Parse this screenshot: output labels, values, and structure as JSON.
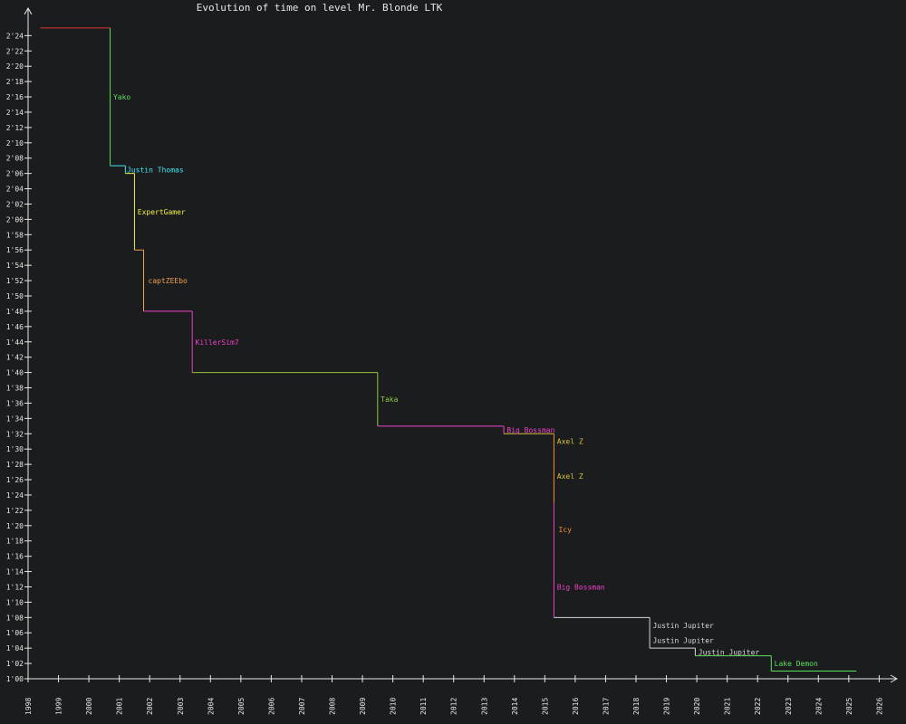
{
  "chart_data": {
    "type": "line",
    "title": "Evolution of time on level Mr. Blonde LTK",
    "xlabel": "",
    "ylabel": "",
    "xlim": [
      1998,
      2026
    ],
    "ylim_seconds": [
      60,
      146
    ],
    "x_ticks": [
      "1998",
      "1999",
      "2000",
      "2001",
      "2002",
      "2003",
      "2004",
      "2005",
      "2006",
      "2007",
      "2008",
      "2009",
      "2010",
      "2011",
      "2012",
      "2013",
      "2014",
      "2015",
      "2016",
      "2017",
      "2018",
      "2019",
      "2020",
      "2021",
      "2022",
      "2023",
      "2024",
      "2025",
      "2026"
    ],
    "y_ticks": [
      "1'00",
      "1'02",
      "1'04",
      "1'06",
      "1'08",
      "1'10",
      "1'12",
      "1'14",
      "1'16",
      "1'18",
      "1'20",
      "1'22",
      "1'24",
      "1'26",
      "1'28",
      "1'30",
      "1'32",
      "1'34",
      "1'36",
      "1'38",
      "1'40",
      "1'42",
      "1'44",
      "1'46",
      "1'48",
      "1'50",
      "1'52",
      "1'54",
      "1'56",
      "1'58",
      "2'00",
      "2'02",
      "2'04",
      "2'06",
      "2'08",
      "2'10",
      "2'12",
      "2'14",
      "2'16",
      "2'18",
      "2'20",
      "2'22",
      "2'24"
    ],
    "step_series": [
      {
        "player": "",
        "color": "#e03030",
        "start": 1998.4,
        "end": 2000.7,
        "time_s": 145,
        "label_year": null,
        "label_time_s": null
      },
      {
        "player": "Yako",
        "color": "#5ee05e",
        "start": 2000.7,
        "end": 2001.2,
        "time_s": 127,
        "label_year": 2000.8,
        "label_time_s": 136
      },
      {
        "player": "Justin Thomas",
        "color": "#40e8f0",
        "start": 2001.2,
        "end": 2001.5,
        "time_s": 126,
        "label_year": 2001.25,
        "label_time_s": 126.5
      },
      {
        "player": "ExpertGamer",
        "color": "#f0f040",
        "start": 2001.5,
        "end": 2001.8,
        "time_s": 116,
        "label_year": 2001.6,
        "label_time_s": 121
      },
      {
        "player": "captZEEbo",
        "color": "#f0a050",
        "start": 2001.8,
        "end": 2003.4,
        "time_s": 108,
        "label_year": 2001.95,
        "label_time_s": 112
      },
      {
        "player": "KillerSim7",
        "color": "#f040c8",
        "start": 2003.4,
        "end": 2009.5,
        "time_s": 100,
        "label_year": 2003.5,
        "label_time_s": 104
      },
      {
        "player": "Taka",
        "color": "#90c840",
        "start": 2009.5,
        "end": 2013.65,
        "time_s": 93,
        "label_year": 2009.6,
        "label_time_s": 96.5
      },
      {
        "player": "Big Bossman",
        "color": "#f040c8",
        "start": 2013.65,
        "end": 2015.3,
        "time_s": 92,
        "label_year": 2013.75,
        "label_time_s": 92.5
      },
      {
        "player": "Axel Z",
        "color": "#d8c040",
        "start": 2015.3,
        "end": 2015.3,
        "time_s": 87,
        "label_year": 2015.4,
        "label_time_s": 91
      },
      {
        "player": "Axel Z",
        "color": "#d8c040",
        "start": 2015.3,
        "end": 2015.3,
        "time_s": 83,
        "label_year": 2015.4,
        "label_time_s": 86.5
      },
      {
        "player": "Icy",
        "color": "#f09030",
        "start": 2015.3,
        "end": 2015.3,
        "time_s": 76,
        "label_year": 2015.45,
        "label_time_s": 79.5
      },
      {
        "player": "Big Bossman",
        "color": "#f040c8",
        "start": 2015.3,
        "end": 2018.45,
        "time_s": 68,
        "label_year": 2015.4,
        "label_time_s": 72
      },
      {
        "player": "Justin Jupiter",
        "color": "#d8d8d8",
        "start": 2018.45,
        "end": 2019.95,
        "time_s": 64,
        "label_year": 2018.55,
        "label_time_s": 67
      },
      {
        "player": "Justin Jupiter",
        "color": "#d8d8d8",
        "start": 2019.95,
        "end": 2022.45,
        "time_s": 63,
        "label_year": 2018.55,
        "label_time_s": 65
      },
      {
        "player": "Justin Jupiter",
        "color": "#d8d8d8",
        "start": 2022.45,
        "end": 2022.45,
        "time_s": 63,
        "label_year": 2020.05,
        "label_time_s": 63.5
      },
      {
        "player": "Lake Demon",
        "color": "#5ee05e",
        "start": 2022.45,
        "end": 2025.25,
        "time_s": 61,
        "label_year": 2022.55,
        "label_time_s": 62
      }
    ],
    "step_points": [
      {
        "year": 1998.4,
        "time_s": 145.0
      },
      {
        "year": 2000.7,
        "time_s": 145.0
      },
      {
        "year": 2000.7,
        "time_s": 127.0
      },
      {
        "year": 2001.2,
        "time_s": 127.0
      },
      {
        "year": 2001.2,
        "time_s": 126.0
      },
      {
        "year": 2001.5,
        "time_s": 126.0
      },
      {
        "year": 2001.5,
        "time_s": 116.0
      },
      {
        "year": 2001.8,
        "time_s": 116.0
      },
      {
        "year": 2001.8,
        "time_s": 108.0
      },
      {
        "year": 2003.4,
        "time_s": 108.0
      },
      {
        "year": 2003.4,
        "time_s": 100.0
      },
      {
        "year": 2009.5,
        "time_s": 100.0
      },
      {
        "year": 2009.5,
        "time_s": 93.0
      },
      {
        "year": 2013.65,
        "time_s": 93.0
      },
      {
        "year": 2013.65,
        "time_s": 92.0
      },
      {
        "year": 2015.3,
        "time_s": 92.0
      },
      {
        "year": 2015.3,
        "time_s": 83.0
      },
      {
        "year": 2015.3,
        "time_s": 76.0
      },
      {
        "year": 2015.3,
        "time_s": 68.0
      },
      {
        "year": 2018.45,
        "time_s": 68.0
      },
      {
        "year": 2018.45,
        "time_s": 64.0
      },
      {
        "year": 2019.95,
        "time_s": 64.0
      },
      {
        "year": 2019.95,
        "time_s": 63.0
      },
      {
        "year": 2022.45,
        "time_s": 63.0
      },
      {
        "year": 2022.45,
        "time_s": 61.0
      },
      {
        "year": 2025.25,
        "time_s": 61.0
      }
    ],
    "segment_colors": [
      "#e03030",
      "#5ee05e",
      "#40e8f0",
      "#40e8f0",
      "#f0f040",
      "#f0f040",
      "#f0a050",
      "#f0a050",
      "#f040c8",
      "#f040c8",
      "#90c840",
      "#90c840",
      "#f040c8",
      "#f040c8",
      "#d8c040",
      "#f09030",
      "#f040c8",
      "#f040c8",
      "#d8d8d8",
      "#d8d8d8",
      "#d8d8d8",
      "#d8d8d8",
      "#5ee05e",
      "#5ee05e",
      "#5ee05e"
    ],
    "axis_color": "#e8e8e8",
    "background": "#1b1c1e",
    "grid": false,
    "legend": "none"
  }
}
